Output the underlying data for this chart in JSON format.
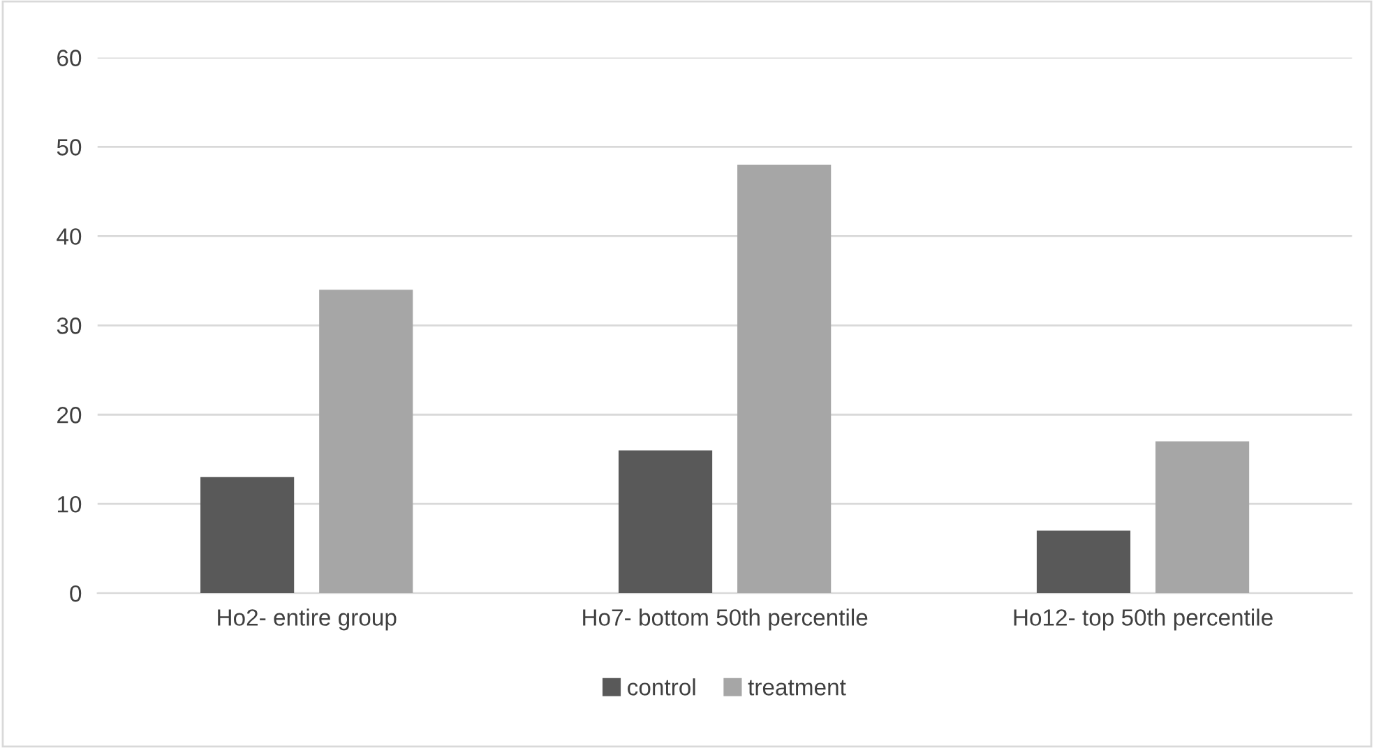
{
  "chart_data": {
    "type": "bar",
    "categories": [
      "Ho2- entire group",
      "Ho7- bottom 50th percentile",
      "Ho12- top 50th percentile"
    ],
    "series": [
      {
        "name": "control",
        "color": "#595959",
        "values": [
          13,
          16,
          7
        ]
      },
      {
        "name": "treatment",
        "color": "#a6a6a6",
        "values": [
          34,
          48,
          17
        ]
      }
    ],
    "ylim": [
      0,
      60
    ],
    "yticks": [
      0,
      10,
      20,
      30,
      40,
      50,
      60
    ],
    "grid": "y",
    "legend": "bottom"
  }
}
